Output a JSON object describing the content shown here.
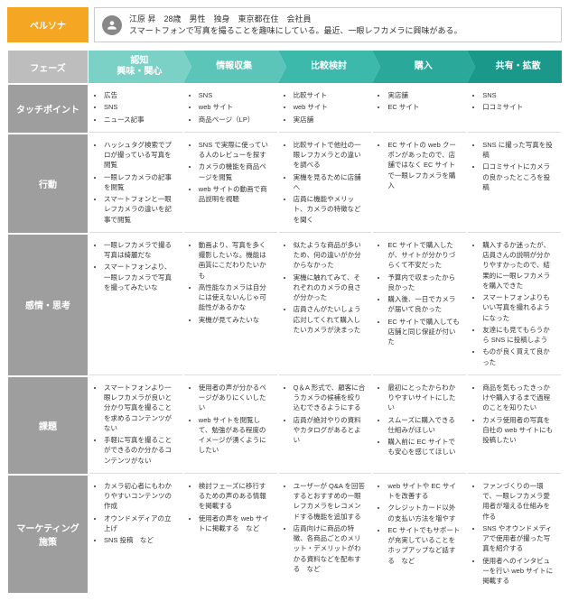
{
  "persona": {
    "label": "ペルソナ",
    "line1": "江原 昇　28歳　男性　独身　東京都在住　会社員",
    "line2": "スマートフォンで写真を撮ることを趣味にしている。最近、一眼レフカメラに興味がある。"
  },
  "phaseHeader": "フェーズ",
  "phases": [
    {
      "title1": "認知",
      "title2": "興味・関心"
    },
    {
      "title1": "情報収集",
      "title2": ""
    },
    {
      "title1": "比較検討",
      "title2": ""
    },
    {
      "title1": "購入",
      "title2": ""
    },
    {
      "title1": "共有・拡散",
      "title2": ""
    }
  ],
  "rows": [
    {
      "label": "タッチポイント",
      "cells": [
        [
          "広告",
          "SNS",
          "ニュース記事"
        ],
        [
          "SNS",
          "web サイト",
          "商品ページ（LP）"
        ],
        [
          "比較サイト",
          "web サイト",
          "実店舗"
        ],
        [
          "実店舗",
          "EC サイト"
        ],
        [
          "SNS",
          "口コミサイト"
        ]
      ]
    },
    {
      "label": "行動",
      "cells": [
        [
          "ハッシュタグ検索でプロが撮っている写真を閲覧",
          "一眼レフカメラの記事を閲覧",
          "スマートフォンと一眼レフカメラの違いを記事で閲覧"
        ],
        [
          "SNS で実際に使っている人のレビューを探す",
          "カメラの機能を商品ページを閲覧",
          "web サイトの動画で商品説明を視聴"
        ],
        [
          "比較サイトで他社の一眼レフカメラとの違いを調べる",
          "実機を見るために店舗へ",
          "店員に機能やメリット、カメラの特徴などを聞く"
        ],
        [
          "EC サイトの web クーポンがあったので、店舗ではなく EC サイトで一眼レフカメラを購入"
        ],
        [
          "SNS に撮った写真を投稿",
          "口コミサイトにカメラの良かったところを投稿"
        ]
      ]
    },
    {
      "label": "感情・思考",
      "cells": [
        [
          "一眼レフカメラで撮る写真は綺麗だな",
          "スマートフォンより、一眼レフカメラで写真を撮ってみたいな"
        ],
        [
          "動画より、写真を多く撮影したいな。機能は画質にこだわりたいかも",
          "高性能なカメラは自分には使えないんじゃ可能性があるかな",
          "実機が見てみたいな"
        ],
        [
          "似たような商品が多いため、何の違いがか分からなかった",
          "実機に触れてみて、それぞれのカメラの良さが分かった",
          "店員さんがたいしょう応対してくれて購入したいカメラが決まった"
        ],
        [
          "EC サイトで購入したが、サイトが分かりづらくて不安だった",
          "予算内で収まったから良かった",
          "購入後、一日でカメラが届いて良かった",
          "EC サイトで購入しても店舗と同じ保証が付いた"
        ],
        [
          "購入するか迷ったが、店員さんの説明が分かりやすかったので、結果的に一眼レフカメラを購入できた",
          "スマートフォンよりもいい写真を撮れるようになった",
          "友達にも見てもらうから SNS に投稿しよう",
          "ものが良く買えて良かった"
        ]
      ]
    },
    {
      "label": "課題",
      "cells": [
        [
          "スマートフォンより一眼レフカメラが良いと分かり写真を撮ることを求めるコンテンツがない",
          "手軽に写真を撮ることができるのか分かるコンテンツがない"
        ],
        [
          "使用者の声が分かるページがありにくいしたい",
          "web サイトを閲覧して、勉強がある程度のイメージが湧くようにしたい"
        ],
        [
          "Q＆A 形式で、顧客に合うカメラの候補を絞り込むできるようにする",
          "店員が絶対やりの資料やカタログがあるとよい"
        ],
        [
          "最初にとったからわかりやすいサイトにしたい",
          "スムーズに購入できる仕組みがほしい",
          "購入前に EC サイトでも安心を感じてほしい"
        ],
        [
          "商品を気もったきっかけや購入するまで過程のことを知りたい",
          "カメラ使用者の写真を自社の web サイトにも投稿したい"
        ]
      ]
    },
    {
      "label": "マーケティング\n施策",
      "cells": [
        [
          "カメラ初心者にもわかりやすいコンテンツの作成",
          "オウンドメディアの立上げ",
          "SNS 投稿　など"
        ],
        [
          "検討フェーズに移行するための声のある情報を掲載する",
          "使用者の声を web サイトに掲載する　など"
        ],
        [
          "ユーザーが Q&A を回答するとおすすめの一眼レフカメラをレコメンドする機能を追加する",
          "店員向けに商品の特徴、各商品ごとのメリット・デメリットがわかる資料などを配布する　など"
        ],
        [
          "web サイトや EC サイトを改善する",
          "クレジットカード以外の支払い方法を増やす",
          "EC サイトでもサポートが充実していることをホップアップなど話する　など"
        ],
        [
          "ファンづくりの一環で、一眼レフカメラ愛用者が増える仕組みを作る",
          "SNS やオウンドメディアで使用者が撮った写真を紹介する",
          "使用者へのインタビューを行い web サイトに掲載する"
        ]
      ]
    }
  ]
}
